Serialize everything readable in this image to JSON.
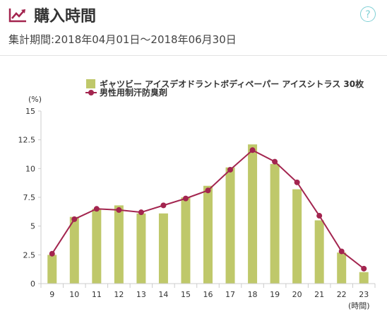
{
  "header": {
    "title": "購入時間",
    "title_icon": "trend-line-icon",
    "help_label": "?",
    "help_icon": "help-icon",
    "period_label": "集計期間:",
    "period_value": "2018年04月01日〜2018年06月30日"
  },
  "colors": {
    "bar": "#bfc86a",
    "line": "#a3254f",
    "title_icon": "#a3254f",
    "help": "#7fd0d5"
  },
  "chart_data": {
    "type": "bar",
    "categories": [
      "9",
      "10",
      "11",
      "12",
      "13",
      "14",
      "15",
      "16",
      "17",
      "18",
      "19",
      "20",
      "21",
      "22",
      "23"
    ],
    "series": [
      {
        "name": "ギャツビー アイスデオドラントボディペーパー アイスシトラス 30枚",
        "type": "bar",
        "values": [
          2.5,
          5.8,
          6.5,
          6.8,
          6.1,
          6.1,
          7.5,
          8.5,
          10.1,
          12.1,
          10.4,
          8.2,
          5.5,
          2.7,
          1.0
        ]
      },
      {
        "name": "男性用制汗防臭剤",
        "type": "line",
        "values": [
          2.6,
          5.6,
          6.5,
          6.4,
          6.2,
          6.8,
          7.4,
          8.1,
          9.9,
          11.6,
          10.6,
          8.8,
          5.9,
          2.8,
          1.3
        ]
      }
    ],
    "ylabel": "(%)",
    "xlabel": "(時間)",
    "ylim": [
      0,
      15
    ],
    "yticks": [
      "0",
      "2.5",
      "5",
      "7.5",
      "10",
      "12.5",
      "15"
    ],
    "grid": false,
    "legend_position": "top"
  }
}
